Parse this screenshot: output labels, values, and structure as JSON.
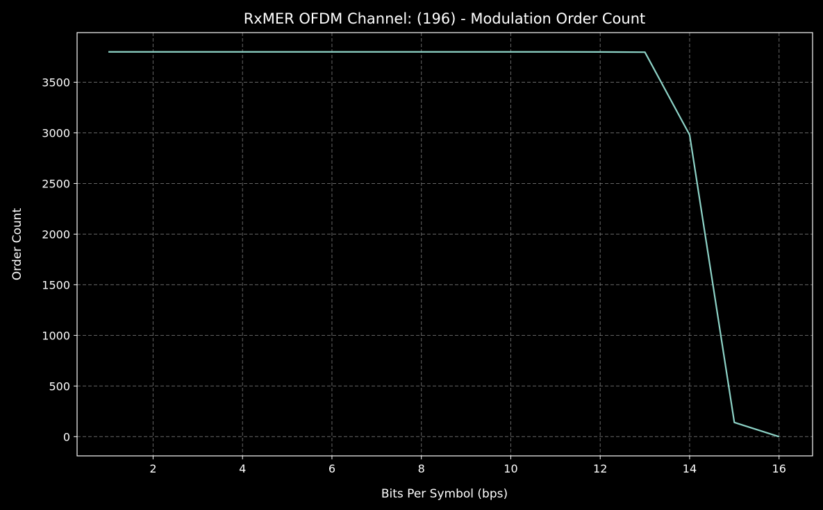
{
  "chart_data": {
    "type": "line",
    "title": "RxMER OFDM Channel: (196) - Modulation Order Count",
    "xlabel": "Bits Per Symbol (bps)",
    "ylabel": "Order Count",
    "x": [
      1,
      2,
      3,
      4,
      5,
      6,
      7,
      8,
      9,
      10,
      11,
      12,
      13,
      14,
      15,
      16
    ],
    "series": [
      {
        "values": [
          3800,
          3800,
          3800,
          3800,
          3800,
          3800,
          3800,
          3800,
          3800,
          3800,
          3800,
          3799,
          3797,
          2980,
          140,
          0
        ]
      }
    ],
    "xlim": [
      0.3,
      16.75
    ],
    "ylim": [
      -190,
      3990
    ],
    "xticks": [
      2,
      4,
      6,
      8,
      10,
      12,
      14,
      16
    ],
    "yticks": [
      0,
      500,
      1000,
      1500,
      2000,
      2500,
      3000,
      3500
    ],
    "grid": true,
    "colors": {
      "background": "#000000",
      "line": "#8dd3c7",
      "text": "#ffffff",
      "grid": "#8a8a8a"
    }
  }
}
